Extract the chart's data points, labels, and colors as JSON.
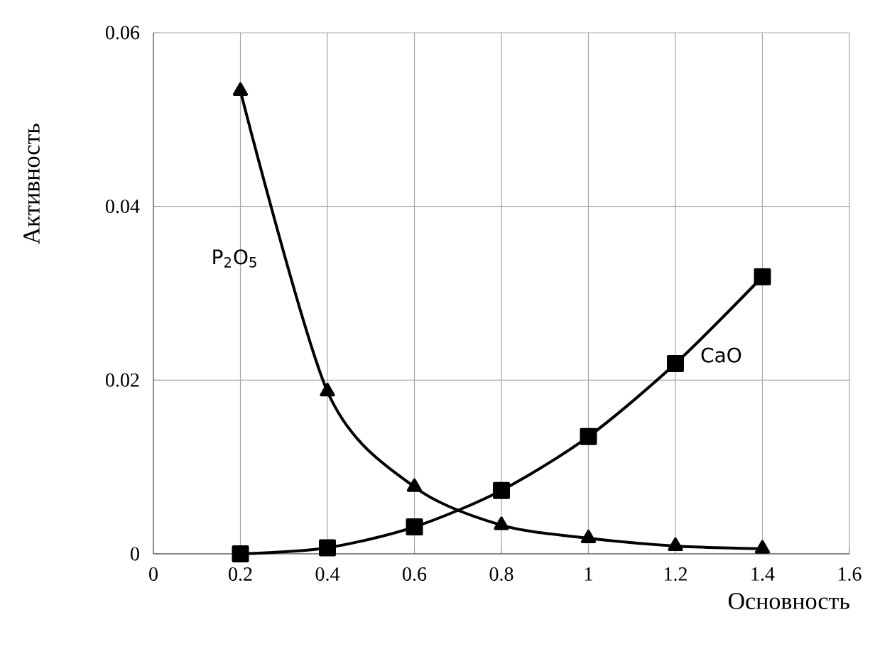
{
  "chart_data": {
    "type": "line",
    "xlabel": "Основность",
    "ylabel": "Активность",
    "x": [
      0.2,
      0.4,
      0.6,
      0.8,
      1.0,
      1.2,
      1.4
    ],
    "series": [
      {
        "name": "P$_{2}$O$_{5}$",
        "color": "#000000",
        "marker": "triangle",
        "values": [
          0.0533,
          0.0187,
          0.0077,
          0.0033,
          0.0018,
          0.0009,
          0.0006
        ]
      },
      {
        "name": "CaO",
        "color": "#000000",
        "marker": "square",
        "values": [
          0.0,
          0.0007,
          0.0031,
          0.0073,
          0.0135,
          0.0219,
          0.0319
        ]
      }
    ],
    "xlim": [
      0,
      1.6
    ],
    "ylim": [
      0,
      0.06
    ],
    "xticks": [
      0,
      0.2,
      0.4,
      0.6,
      0.8,
      1,
      1.2,
      1.4,
      1.6
    ],
    "yticks": [
      0,
      0.02,
      0.04,
      0.06
    ],
    "grid": true,
    "line_style": "solid"
  }
}
